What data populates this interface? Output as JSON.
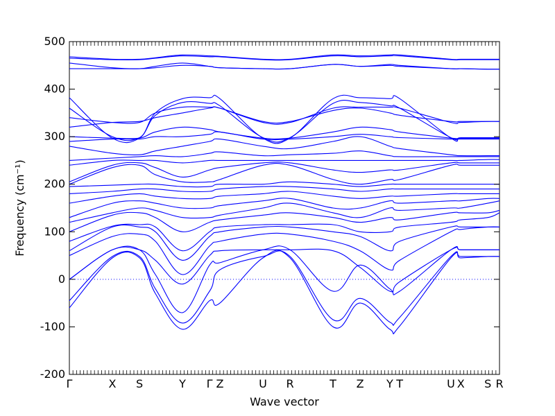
{
  "chart_data": {
    "type": "line",
    "title": "",
    "xlabel": "Wave vector",
    "ylabel": "Frequency (cm⁻¹)",
    "ylim": [
      -200,
      500
    ],
    "yticks": [
      -200,
      -100,
      0,
      100,
      200,
      300,
      400,
      500
    ],
    "xlim": [
      0,
      1
    ],
    "high_symmetry_points": [
      {
        "label": "Γ",
        "x": 0.0
      },
      {
        "label": "X",
        "x": 0.1
      },
      {
        "label": "S",
        "x": 0.163
      },
      {
        "label": "Y",
        "x": 0.263
      },
      {
        "label": "Γ",
        "x": 0.326
      },
      {
        "label": "Z",
        "x": 0.35
      },
      {
        "label": "U",
        "x": 0.45
      },
      {
        "label": "R",
        "x": 0.513
      },
      {
        "label": "T",
        "x": 0.613
      },
      {
        "label": "Z",
        "x": 0.676
      },
      {
        "label": "Y",
        "x": 0.745
      },
      {
        "label": "T",
        "x": 0.768
      },
      {
        "label": "U",
        "x": 0.887
      },
      {
        "label": "X",
        "x": 0.91
      },
      {
        "label": "S",
        "x": 0.973
      },
      {
        "label": "R",
        "x": 1.0
      }
    ],
    "zero_line": 0,
    "series_color": "#0000ff",
    "zero_line_color": "#0000ff",
    "series": [
      {
        "x": [
          0,
          0.1,
          0.163,
          0.2,
          0.263,
          0.326,
          0.35,
          0.45,
          0.513,
          0.613,
          0.676,
          0.745,
          0.768,
          0.887,
          0.91,
          0.973,
          1
        ],
        "y": [
          -60,
          45,
          45,
          -30,
          -105,
          -45,
          -50,
          45,
          45,
          -100,
          -50,
          -105,
          -98,
          45,
          45,
          48,
          48
        ]
      },
      {
        "x": [
          0,
          0.1,
          0.163,
          0.2,
          0.263,
          0.326,
          0.35,
          0.45,
          0.513,
          0.613,
          0.676,
          0.745,
          0.768,
          0.887,
          0.91,
          0.973,
          1
        ],
        "y": [
          -45,
          48,
          48,
          -20,
          -92,
          -25,
          20,
          48,
          48,
          -85,
          -40,
          -90,
          -80,
          48,
          48,
          48,
          48
        ]
      },
      {
        "x": [
          0,
          0.1,
          0.163,
          0.2,
          0.263,
          0.326,
          0.35,
          0.45,
          0.513,
          0.613,
          0.676,
          0.745,
          0.768,
          0.887,
          0.91,
          0.973,
          1
        ],
        "y": [
          0,
          62,
          62,
          10,
          -70,
          30,
          35,
          62,
          62,
          -25,
          30,
          -20,
          -25,
          62,
          62,
          62,
          62
        ]
      },
      {
        "x": [
          0,
          0.1,
          0.163,
          0.2,
          0.263,
          0.326,
          0.35,
          0.45,
          0.513,
          0.613,
          0.676,
          0.745,
          0.768,
          0.887,
          0.91,
          0.973,
          1
        ],
        "y": [
          0,
          62,
          62,
          40,
          -10,
          50,
          60,
          62,
          62,
          60,
          25,
          -25,
          -5,
          62,
          62,
          62,
          62
        ]
      },
      {
        "x": [
          0,
          0.1,
          0.163,
          0.2,
          0.263,
          0.326,
          0.35,
          0.45,
          0.513,
          0.613,
          0.676,
          0.745,
          0.768,
          0.887,
          0.91,
          0.973,
          1
        ],
        "y": [
          50,
          90,
          95,
          80,
          10,
          70,
          80,
          95,
          95,
          80,
          60,
          20,
          40,
          100,
          105,
          110,
          110
        ]
      },
      {
        "x": [
          0,
          0.1,
          0.163,
          0.2,
          0.263,
          0.326,
          0.35,
          0.45,
          0.513,
          0.613,
          0.676,
          0.745,
          0.768,
          0.887,
          0.91,
          0.973,
          1
        ],
        "y": [
          60,
          110,
          110,
          100,
          40,
          90,
          100,
          110,
          110,
          100,
          90,
          60,
          80,
          110,
          110,
          110,
          110
        ]
      },
      {
        "x": [
          0,
          0.1,
          0.163,
          0.2,
          0.263,
          0.326,
          0.35,
          0.45,
          0.513,
          0.613,
          0.676,
          0.745,
          0.768,
          0.887,
          0.91,
          0.973,
          1
        ],
        "y": [
          80,
          112,
          115,
          110,
          60,
          100,
          110,
          115,
          115,
          115,
          100,
          100,
          110,
          120,
          125,
          130,
          140
        ]
      },
      {
        "x": [
          0,
          0.1,
          0.163,
          0.2,
          0.263,
          0.326,
          0.35,
          0.45,
          0.513,
          0.613,
          0.676,
          0.745,
          0.768,
          0.887,
          0.91,
          0.973,
          1
        ],
        "y": [
          100,
          135,
          140,
          130,
          100,
          120,
          125,
          135,
          140,
          130,
          120,
          130,
          125,
          140,
          140,
          140,
          145
        ]
      },
      {
        "x": [
          0,
          0.1,
          0.163,
          0.2,
          0.263,
          0.326,
          0.35,
          0.45,
          0.513,
          0.613,
          0.676,
          0.745,
          0.768,
          0.887,
          0.91,
          0.973,
          1
        ],
        "y": [
          120,
          140,
          150,
          145,
          130,
          130,
          135,
          150,
          160,
          140,
          130,
          150,
          145,
          150,
          150,
          160,
          165
        ]
      },
      {
        "x": [
          0,
          0.1,
          0.163,
          0.2,
          0.263,
          0.326,
          0.35,
          0.45,
          0.513,
          0.613,
          0.676,
          0.745,
          0.768,
          0.887,
          0.91,
          0.973,
          1
        ],
        "y": [
          130,
          160,
          165,
          160,
          150,
          150,
          155,
          165,
          170,
          150,
          150,
          165,
          160,
          165,
          165,
          170,
          170
        ]
      },
      {
        "x": [
          0,
          0.1,
          0.163,
          0.2,
          0.263,
          0.326,
          0.35,
          0.45,
          0.513,
          0.613,
          0.676,
          0.745,
          0.768,
          0.887,
          0.91,
          0.973,
          1
        ],
        "y": [
          160,
          175,
          180,
          175,
          170,
          170,
          175,
          180,
          185,
          175,
          170,
          175,
          175,
          180,
          180,
          180,
          180
        ]
      },
      {
        "x": [
          0,
          0.1,
          0.163,
          0.2,
          0.263,
          0.326,
          0.35,
          0.45,
          0.513,
          0.613,
          0.676,
          0.745,
          0.768,
          0.887,
          0.91,
          0.973,
          1
        ],
        "y": [
          180,
          185,
          190,
          190,
          185,
          185,
          190,
          195,
          195,
          190,
          185,
          190,
          190,
          190,
          190,
          190,
          190
        ]
      },
      {
        "x": [
          0,
          0.1,
          0.163,
          0.2,
          0.263,
          0.326,
          0.35,
          0.45,
          0.513,
          0.613,
          0.676,
          0.745,
          0.768,
          0.887,
          0.91,
          0.973,
          1
        ],
        "y": [
          195,
          198,
          200,
          200,
          195,
          195,
          200,
          200,
          205,
          200,
          195,
          200,
          200,
          200,
          200,
          200,
          200
        ]
      },
      {
        "x": [
          0,
          0.1,
          0.163,
          0.2,
          0.263,
          0.326,
          0.35,
          0.45,
          0.513,
          0.613,
          0.676,
          0.745,
          0.768,
          0.887,
          0.91,
          0.973,
          1
        ],
        "y": [
          200,
          235,
          240,
          220,
          205,
          205,
          210,
          240,
          240,
          210,
          200,
          210,
          210,
          240,
          240,
          240,
          240
        ]
      },
      {
        "x": [
          0,
          0.1,
          0.163,
          0.2,
          0.263,
          0.326,
          0.35,
          0.45,
          0.513,
          0.613,
          0.676,
          0.745,
          0.768,
          0.887,
          0.91,
          0.973,
          1
        ],
        "y": [
          205,
          240,
          245,
          235,
          215,
          230,
          235,
          245,
          245,
          230,
          225,
          230,
          230,
          245,
          245,
          245,
          245
        ]
      },
      {
        "x": [
          0,
          0.1,
          0.163,
          0.2,
          0.263,
          0.326,
          0.35,
          0.45,
          0.513,
          0.613,
          0.676,
          0.745,
          0.768,
          0.887,
          0.91,
          0.973,
          1
        ],
        "y": [
          240,
          250,
          250,
          250,
          245,
          250,
          250,
          250,
          250,
          250,
          250,
          250,
          250,
          250,
          250,
          252,
          252
        ]
      },
      {
        "x": [
          0,
          0.1,
          0.163,
          0.2,
          0.263,
          0.326,
          0.35,
          0.45,
          0.513,
          0.613,
          0.676,
          0.745,
          0.768,
          0.887,
          0.91,
          0.973,
          1
        ],
        "y": [
          250,
          255,
          258,
          260,
          258,
          265,
          268,
          260,
          262,
          265,
          270,
          260,
          258,
          258,
          258,
          258,
          258
        ]
      },
      {
        "x": [
          0,
          0.1,
          0.163,
          0.2,
          0.263,
          0.326,
          0.35,
          0.45,
          0.513,
          0.613,
          0.676,
          0.745,
          0.768,
          0.887,
          0.91,
          0.973,
          1
        ],
        "y": [
          280,
          265,
          262,
          270,
          280,
          290,
          295,
          280,
          275,
          290,
          300,
          280,
          275,
          262,
          260,
          260,
          260
        ]
      },
      {
        "x": [
          0,
          0.1,
          0.163,
          0.2,
          0.263,
          0.326,
          0.35,
          0.45,
          0.513,
          0.613,
          0.676,
          0.745,
          0.768,
          0.887,
          0.91,
          0.973,
          1
        ],
        "y": [
          290,
          295,
          295,
          300,
          300,
          305,
          310,
          295,
          295,
          300,
          305,
          300,
          298,
          295,
          295,
          295,
          295
        ]
      },
      {
        "x": [
          0,
          0.1,
          0.163,
          0.2,
          0.263,
          0.326,
          0.35,
          0.45,
          0.513,
          0.613,
          0.676,
          0.745,
          0.768,
          0.887,
          0.91,
          0.973,
          1
        ],
        "y": [
          300,
          297,
          297,
          310,
          320,
          315,
          310,
          297,
          297,
          310,
          320,
          315,
          310,
          297,
          297,
          297,
          297
        ]
      },
      {
        "x": [
          0,
          0.1,
          0.163,
          0.2,
          0.263,
          0.326,
          0.35,
          0.45,
          0.513,
          0.613,
          0.676,
          0.745,
          0.768,
          0.887,
          0.91,
          0.973,
          1
        ],
        "y": [
          320,
          330,
          332,
          340,
          350,
          360,
          360,
          332,
          332,
          355,
          360,
          350,
          345,
          332,
          332,
          332,
          332
        ]
      },
      {
        "x": [
          0,
          0.1,
          0.163,
          0.2,
          0.263,
          0.326,
          0.35,
          0.45,
          0.513,
          0.613,
          0.676,
          0.745,
          0.768,
          0.887,
          0.91,
          0.973,
          1
        ],
        "y": [
          340,
          330,
          330,
          350,
          362,
          362,
          360,
          330,
          330,
          360,
          362,
          362,
          360,
          330,
          330,
          332,
          332
        ]
      },
      {
        "x": [
          0,
          0.1,
          0.163,
          0.2,
          0.263,
          0.326,
          0.35,
          0.45,
          0.513,
          0.613,
          0.676,
          0.745,
          0.768,
          0.887,
          0.91,
          0.973,
          1
        ],
        "y": [
          360,
          300,
          298,
          345,
          372,
          370,
          365,
          298,
          298,
          370,
          372,
          365,
          360,
          298,
          298,
          298,
          298
        ]
      },
      {
        "x": [
          0,
          0.1,
          0.163,
          0.2,
          0.263,
          0.326,
          0.35,
          0.45,
          0.513,
          0.613,
          0.676,
          0.745,
          0.768,
          0.887,
          0.91,
          0.973,
          1
        ],
        "y": [
          382,
          297,
          297,
          350,
          380,
          382,
          380,
          297,
          297,
          380,
          382,
          380,
          380,
          297,
          297,
          297,
          297
        ]
      },
      {
        "x": [
          0,
          0.1,
          0.163,
          0.2,
          0.263,
          0.326,
          0.35,
          0.45,
          0.513,
          0.613,
          0.676,
          0.745,
          0.768,
          0.887,
          0.91,
          0.973,
          1
        ],
        "y": [
          443,
          443,
          443,
          445,
          450,
          448,
          445,
          443,
          443,
          452,
          448,
          450,
          448,
          443,
          443,
          442,
          442
        ]
      },
      {
        "x": [
          0,
          0.1,
          0.163,
          0.2,
          0.263,
          0.326,
          0.35,
          0.45,
          0.513,
          0.613,
          0.676,
          0.745,
          0.768,
          0.887,
          0.91,
          0.973,
          1
        ],
        "y": [
          455,
          445,
          443,
          448,
          455,
          448,
          445,
          443,
          443,
          452,
          448,
          452,
          450,
          443,
          443,
          442,
          442
        ]
      },
      {
        "x": [
          0,
          0.1,
          0.163,
          0.2,
          0.263,
          0.326,
          0.35,
          0.45,
          0.513,
          0.613,
          0.676,
          0.745,
          0.768,
          0.887,
          0.91,
          0.973,
          1
        ],
        "y": [
          465,
          462,
          462,
          465,
          470,
          468,
          468,
          462,
          462,
          470,
          468,
          470,
          470,
          462,
          462,
          462,
          462
        ]
      },
      {
        "x": [
          0,
          0.1,
          0.163,
          0.2,
          0.263,
          0.326,
          0.35,
          0.45,
          0.513,
          0.613,
          0.676,
          0.745,
          0.768,
          0.887,
          0.91,
          0.973,
          1
        ],
        "y": [
          468,
          463,
          463,
          466,
          472,
          470,
          469,
          463,
          463,
          472,
          470,
          472,
          472,
          463,
          463,
          463,
          463
        ]
      }
    ]
  }
}
